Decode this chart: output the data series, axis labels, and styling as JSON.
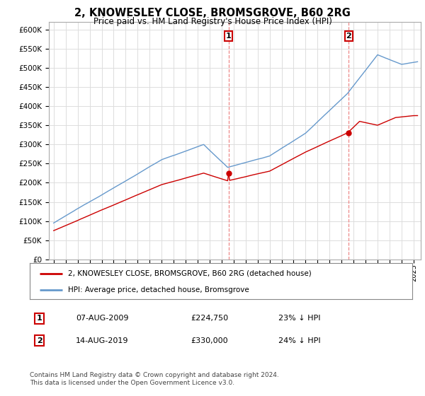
{
  "title": "2, KNOWESLEY CLOSE, BROMSGROVE, B60 2RG",
  "subtitle": "Price paid vs. HM Land Registry's House Price Index (HPI)",
  "legend_label_red": "2, KNOWESLEY CLOSE, BROMSGROVE, B60 2RG (detached house)",
  "legend_label_blue": "HPI: Average price, detached house, Bromsgrove",
  "transaction1_date": "07-AUG-2009",
  "transaction1_price": "£224,750",
  "transaction1_info": "23% ↓ HPI",
  "transaction2_date": "14-AUG-2019",
  "transaction2_price": "£330,000",
  "transaction2_info": "24% ↓ HPI",
  "footer": "Contains HM Land Registry data © Crown copyright and database right 2024.\nThis data is licensed under the Open Government Licence v3.0.",
  "ylim": [
    0,
    620000
  ],
  "yticks": [
    0,
    50000,
    100000,
    150000,
    200000,
    250000,
    300000,
    350000,
    400000,
    450000,
    500000,
    550000,
    600000
  ],
  "color_red": "#cc0000",
  "color_blue": "#6699cc",
  "color_vline": "#ee8888",
  "background_color": "#ffffff",
  "grid_color": "#dddddd",
  "t1_year": 2009.583,
  "t2_year": 2019.583,
  "t1_price": 224750,
  "t2_price": 330000,
  "hpi_t1": 291883,
  "hpi_t2": 433333
}
